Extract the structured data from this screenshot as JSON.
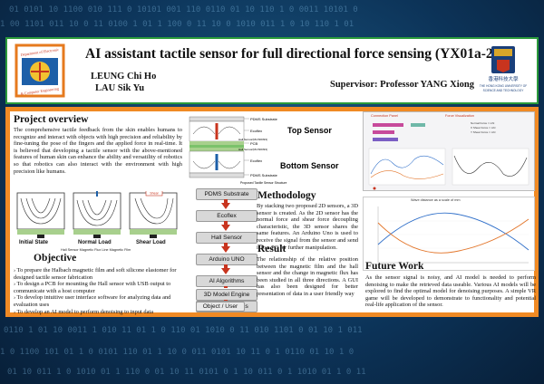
{
  "header": {
    "title": "AI assistant tactile sensor for full directional force sensing (YX01a-23)",
    "author_1": "LEUNG Chi Ho",
    "author_2": "LAU Sik Yu",
    "supervisor": "Supervisor: Professor YANG Xiong",
    "left_logo_text": "Department of Electronic & Computer Engineering",
    "right_logo_text": "THE HONG KONG UNIVERSITY OF SCIENCE AND TECHNOLOGY",
    "right_logo_cjk": "香港科技大學"
  },
  "project_overview": {
    "heading": "Project overview",
    "text": "The comprehensive tactile feedback from the skin enables humans to recognize and interact with objects with high precision and reliability by fine-tuning the pose of the fingers and the applied force in real-time. It is believed that developing a tactile sensor with the above-mentioned features of human skin can enhance the ability and versatility of robotics so that robotics can also interact with the environment with high precision like humans."
  },
  "sensor_diagram": {
    "pdms_top": "PDMS Substrate",
    "ecoflex_top": "Ecoflex",
    "hall_top": "Hall Sensor(MLX90393)",
    "pcb": "PCB",
    "hall_bottom": "Hall Sensor(MLX90393)",
    "ecoflex_bottom": "Ecoflex",
    "pdms_bottom": "PDMS Substrate",
    "top_label": "Top Sensor",
    "bottom_label": "Bottom Sensor",
    "caption": "Proposed Tactile Sensor Structure"
  },
  "load_states": {
    "initial": "Initial State",
    "normal": "Normal Load",
    "shear": "Shear Load",
    "shear_force_label": "Shear",
    "magnet_caption": "Hall Sensor  Magnetic Flux Line  Magnetic Film"
  },
  "flowchart": [
    "PDMS Substrate",
    "Ecoflex",
    "Hall Sensor",
    "Arduino UNO",
    "AI Algorithms",
    "3D Model Engine",
    "VR 3D Graphics",
    "Object / User"
  ],
  "methodology": {
    "heading": "Methodology",
    "text": "By stacking two proposed 2D sensors, a 3D sensor is created. As the 2D sensor has the normal force and shear force decoupling characteristic, the 3D sensor shares the same features. An Arduino Uno is used to receive the signal from the sensor and send it to a PC for further manipulation."
  },
  "result": {
    "heading": "Result",
    "text": "The relationship of the relative position between the magnetic film and the hall sensor and the change in magnetic flux has been studied in all three directions. A GUI has also been designed for better presentation of data in a user friendly way"
  },
  "objective": {
    "heading": "Objective",
    "items": [
      "To prepare the Halbach magnetic film and soft silicone elastomer for designed tactile sensor fabrication",
      "To design a PCB for mounting the Hall sensor with USB output to communicate with a host computer",
      "To develop intuitive user interface software for analyzing data and evaluation uses",
      "To develop an AI model to perform denoising to input data"
    ]
  },
  "future_work": {
    "heading": "Future Work",
    "text": "As the sensor signal is noisy, and AI model is needed to perform denoising to make the retrieved data useable. Various AI models will be explored to find the optimal model for denoising purposes. A simple VR game will be developed to demonstrate to functionality and potential real-life application of the sensor."
  },
  "gui": {
    "connection_title": "Connection Panel",
    "force_title": "Force Visualization",
    "normal_force": "Normal Force =",
    "x_shear": "X Shear Force =",
    "y_shear": "Y Shear Force =",
    "unit": "mN"
  },
  "wave_chart": {
    "title": "Wave distance as a scale of mm"
  },
  "colors": {
    "frame_orange": "#f08a24",
    "header_green": "#2a9a3a",
    "flow_arrow": "#c8341e",
    "series_blue": "#2f6fc9",
    "series_orange": "#e3762b"
  }
}
